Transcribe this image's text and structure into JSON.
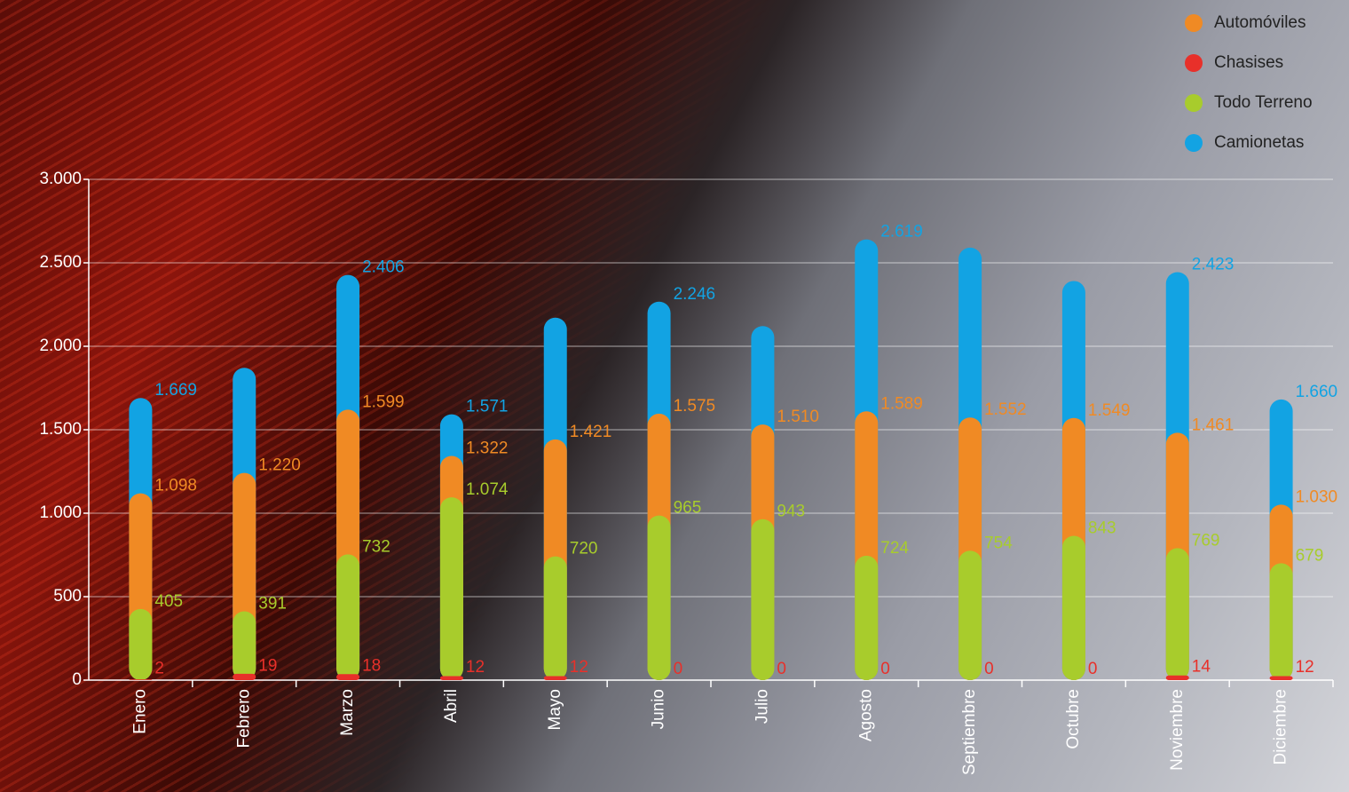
{
  "chart_data": {
    "type": "bar",
    "mode": "overlap",
    "categories": [
      "Enero",
      "Febrero",
      "Marzo",
      "Abril",
      "Mayo",
      "Junio",
      "Julio",
      "Agosto",
      "Septiembre",
      "Octubre",
      "Noviembre",
      "Diciembre"
    ],
    "series": [
      {
        "name": "Automóviles",
        "color": "#f08a24",
        "values": [
          1098,
          1220,
          1599,
          1322,
          1421,
          1575,
          1510,
          1589,
          1552,
          1549,
          1461,
          1030
        ],
        "value_labels": [
          "1.098",
          "1.220",
          "1.599",
          "1.322",
          "1.421",
          "1.575",
          "1.510",
          "1.589",
          "1.552",
          "1.549",
          "1.461",
          "1.030"
        ]
      },
      {
        "name": "Chasises",
        "color": "#e8302a",
        "values": [
          2,
          19,
          18,
          12,
          12,
          0,
          0,
          0,
          0,
          0,
          14,
          12
        ]
      },
      {
        "name": "Todo Terreno",
        "color": "#a8cc2c",
        "values": [
          405,
          391,
          732,
          1074,
          720,
          965,
          943,
          724,
          754,
          843,
          769,
          679
        ],
        "value_labels": [
          "405",
          "391",
          "732",
          "1.074",
          "720",
          "965",
          "943",
          "724",
          "754",
          "843",
          "769",
          "679"
        ]
      },
      {
        "name": "Camionetas",
        "color": "#12a3e3",
        "values": [
          1669,
          1850,
          2406,
          1571,
          2150,
          2246,
          2100,
          2619,
          2570,
          2370,
          2423,
          1660
        ],
        "value_labels": [
          "1.669",
          null,
          "2.406",
          "1.571",
          null,
          "2.246",
          null,
          "2.619",
          null,
          null,
          "2.423",
          "1.660"
        ]
      }
    ],
    "ylim": [
      0,
      3000
    ],
    "yticks": [
      0,
      500,
      {
        "value": 1000,
        "label": "1.000"
      },
      {
        "value": 1500,
        "label": "1.500"
      },
      {
        "value": 2000,
        "label": "2.000"
      },
      {
        "value": 2500,
        "label": "2.500"
      },
      {
        "value": 3000,
        "label": "3.000"
      }
    ],
    "grid": true,
    "legend": "top-right"
  }
}
